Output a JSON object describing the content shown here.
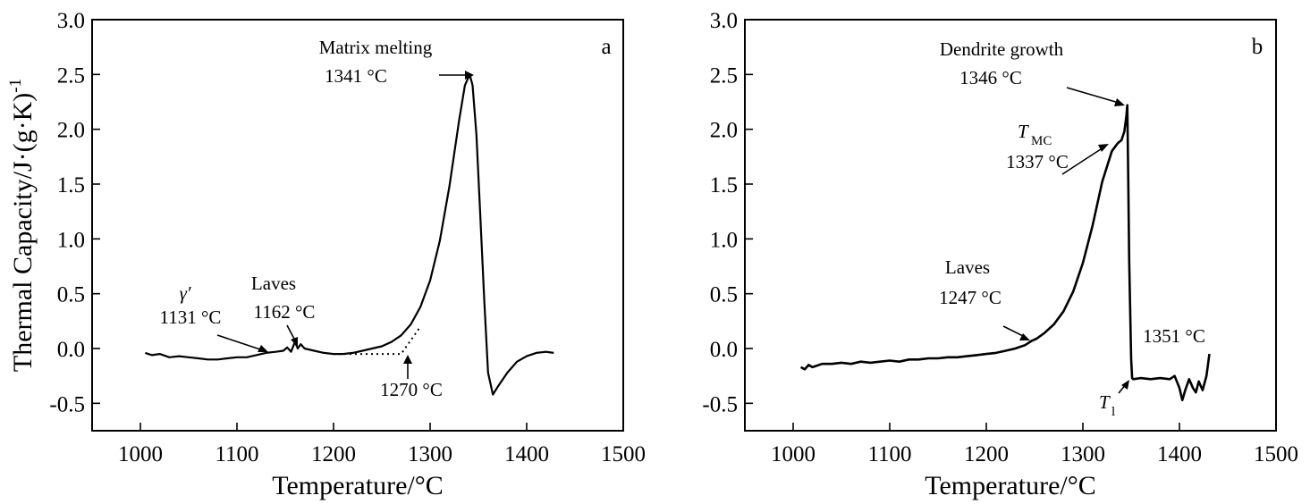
{
  "figure": {
    "ylabel": "Thermal Capacity/J·(g·K)",
    "ylabel_sup": "-1"
  },
  "colors": {
    "line": "#000000",
    "background": "#ffffff"
  },
  "chart_data": [
    {
      "type": "line",
      "panel_label": "a",
      "title": "",
      "xlabel": "Temperature/°C",
      "ylabel": "Thermal Capacity/J·(g·K)-1",
      "xlim": [
        950,
        1500
      ],
      "ylim": [
        -0.75,
        3.0
      ],
      "xticks": [
        1000,
        1100,
        1200,
        1300,
        1400,
        1500
      ],
      "yticks": [
        -0.5,
        0.0,
        0.5,
        1.0,
        1.5,
        2.0,
        2.5,
        3.0
      ],
      "ytick_labels": [
        "-0.5",
        "0.0",
        "0.5",
        "1.0",
        "1.5",
        "2.0",
        "2.5",
        "3.0"
      ],
      "series": [
        {
          "name": "heat capacity",
          "style": "solid",
          "x": [
            1005,
            1012,
            1020,
            1030,
            1040,
            1050,
            1060,
            1070,
            1080,
            1090,
            1100,
            1110,
            1120,
            1130,
            1140,
            1148,
            1152,
            1156,
            1160,
            1163,
            1166,
            1170,
            1180,
            1190,
            1200,
            1210,
            1220,
            1230,
            1240,
            1250,
            1260,
            1270,
            1280,
            1290,
            1300,
            1310,
            1320,
            1330,
            1336,
            1341,
            1344,
            1348,
            1352,
            1356,
            1360,
            1365,
            1370,
            1380,
            1390,
            1400,
            1410,
            1420,
            1428
          ],
          "values": [
            -0.04,
            -0.06,
            -0.05,
            -0.08,
            -0.07,
            -0.08,
            -0.09,
            -0.1,
            -0.1,
            -0.09,
            -0.08,
            -0.08,
            -0.06,
            -0.04,
            -0.03,
            -0.02,
            0.01,
            -0.03,
            0.06,
            0.0,
            0.04,
            0.0,
            -0.02,
            -0.04,
            -0.05,
            -0.05,
            -0.04,
            -0.02,
            0.0,
            0.02,
            0.06,
            0.12,
            0.22,
            0.38,
            0.62,
            0.98,
            1.48,
            2.08,
            2.4,
            2.5,
            2.4,
            1.95,
            1.2,
            0.45,
            -0.22,
            -0.42,
            -0.35,
            -0.22,
            -0.12,
            -0.07,
            -0.04,
            -0.03,
            -0.04
          ]
        },
        {
          "name": "baseline extrapolation",
          "style": "dotted",
          "x": [
            1200,
            1270,
            1290
          ],
          "values": [
            -0.05,
            -0.05,
            0.2
          ]
        }
      ],
      "annotations": [
        {
          "lines": [
            "γ′",
            "1131 °C"
          ],
          "x": 1131,
          "y": -0.02
        },
        {
          "lines": [
            "Laves",
            "1162 °C"
          ],
          "x": 1162,
          "y": 0.04
        },
        {
          "lines": [
            "Matrix melting",
            "1341 °C"
          ],
          "x": 1341,
          "y": 2.5
        },
        {
          "lines": [
            "1270 °C"
          ],
          "x": 1270,
          "y": -0.05
        }
      ]
    },
    {
      "type": "line",
      "panel_label": "b",
      "title": "",
      "xlabel": "Temperature/°C",
      "ylabel": "",
      "xlim": [
        950,
        1500
      ],
      "ylim": [
        -0.75,
        3.0
      ],
      "xticks": [
        1000,
        1100,
        1200,
        1300,
        1400,
        1500
      ],
      "yticks": [
        -0.5,
        0.0,
        0.5,
        1.0,
        1.5,
        2.0,
        2.5,
        3.0
      ],
      "ytick_labels": [
        "-0.5",
        "0.0",
        "0.5",
        "1.0",
        "1.5",
        "2.0",
        "2.5",
        "3.0"
      ],
      "series": [
        {
          "name": "heat capacity",
          "style": "solid",
          "x": [
            1008,
            1012,
            1016,
            1020,
            1030,
            1040,
            1050,
            1060,
            1070,
            1080,
            1090,
            1100,
            1110,
            1120,
            1130,
            1140,
            1150,
            1160,
            1170,
            1180,
            1190,
            1200,
            1210,
            1220,
            1230,
            1240,
            1247,
            1252,
            1260,
            1270,
            1280,
            1290,
            1300,
            1310,
            1320,
            1330,
            1335,
            1337,
            1340,
            1343,
            1345,
            1346,
            1347,
            1348,
            1350,
            1351,
            1352,
            1360,
            1370,
            1380,
            1390,
            1395,
            1400,
            1403,
            1406,
            1410,
            1414,
            1417,
            1420,
            1424,
            1428,
            1431
          ],
          "values": [
            -0.17,
            -0.19,
            -0.15,
            -0.17,
            -0.14,
            -0.14,
            -0.13,
            -0.14,
            -0.12,
            -0.13,
            -0.12,
            -0.11,
            -0.12,
            -0.1,
            -0.1,
            -0.09,
            -0.09,
            -0.08,
            -0.08,
            -0.07,
            -0.06,
            -0.05,
            -0.04,
            -0.02,
            0.0,
            0.03,
            0.07,
            0.09,
            0.14,
            0.22,
            0.34,
            0.52,
            0.78,
            1.12,
            1.52,
            1.8,
            1.86,
            1.88,
            1.9,
            1.98,
            2.12,
            2.22,
            1.5,
            0.8,
            -0.1,
            -0.27,
            -0.28,
            -0.27,
            -0.28,
            -0.27,
            -0.28,
            -0.25,
            -0.36,
            -0.47,
            -0.38,
            -0.28,
            -0.36,
            -0.4,
            -0.3,
            -0.38,
            -0.25,
            -0.05
          ]
        }
      ],
      "annotations": [
        {
          "lines": [
            "Dendrite growth",
            "1346 °C"
          ],
          "x": 1346,
          "y": 2.22
        },
        {
          "lines": [
            "T",
            "MC",
            "1337 °C"
          ],
          "x": 1337,
          "y": 1.88
        },
        {
          "lines": [
            "Laves",
            "1247 °C"
          ],
          "x": 1247,
          "y": 0.07
        },
        {
          "lines": [
            "1351 °C"
          ],
          "x": 1351,
          "y": -0.27
        },
        {
          "lines": [
            "T",
            "l"
          ],
          "x": 1351,
          "y": -0.27
        }
      ]
    }
  ]
}
